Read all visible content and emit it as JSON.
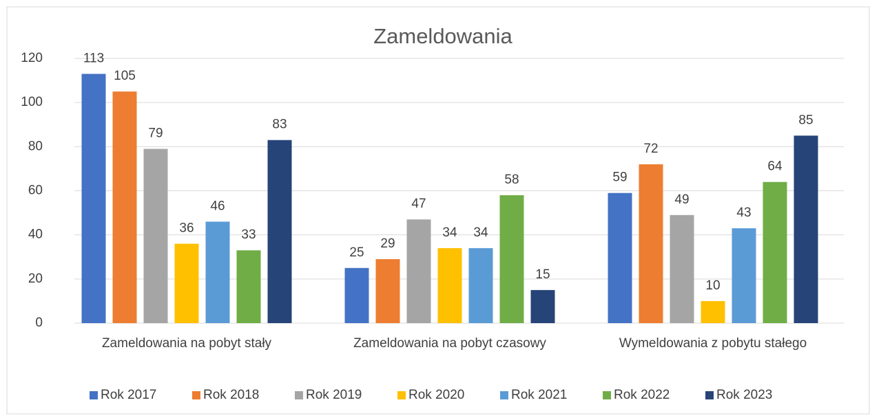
{
  "chart_data": {
    "type": "bar",
    "title": "Zameldowania",
    "categories": [
      "Zameldowania na pobyt stały",
      "Zameldowania na pobyt czasowy",
      "Wymeldowania z pobytu stałego"
    ],
    "series": [
      {
        "name": "Rok 2017",
        "color": "#4472c4",
        "values": [
          113,
          25,
          59
        ]
      },
      {
        "name": "Rok 2018",
        "color": "#ed7d31",
        "values": [
          105,
          29,
          72
        ]
      },
      {
        "name": "Rok 2019",
        "color": "#a5a5a5",
        "values": [
          79,
          47,
          49
        ]
      },
      {
        "name": "Rok 2020",
        "color": "#ffc000",
        "values": [
          36,
          34,
          10
        ]
      },
      {
        "name": "Rok 2021",
        "color": "#5b9bd5",
        "values": [
          46,
          34,
          43
        ]
      },
      {
        "name": "Rok 2022",
        "color": "#70ad47",
        "values": [
          33,
          58,
          64
        ]
      },
      {
        "name": "Rok 2023",
        "color": "#264478",
        "values": [
          83,
          15,
          85
        ]
      }
    ],
    "ylim": [
      0,
      120
    ],
    "yticks": [
      0,
      20,
      40,
      60,
      80,
      100,
      120
    ],
    "grid": true,
    "legend": "bottom"
  }
}
